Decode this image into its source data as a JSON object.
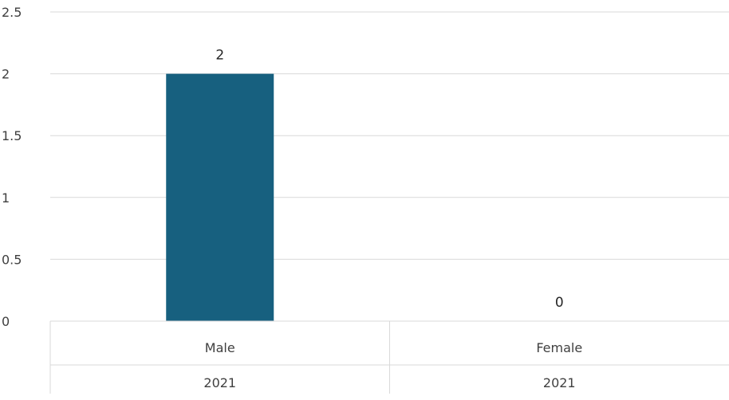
{
  "chart_data": {
    "type": "bar",
    "categories": [
      "Male",
      "Female"
    ],
    "category_groups": [
      "2021",
      "2021"
    ],
    "values": [
      2,
      0
    ],
    "data_labels": [
      "2",
      "0"
    ],
    "ylim": [
      0,
      2.5
    ],
    "y_ticks": [
      0,
      0.5,
      1,
      1.5,
      2,
      2.5
    ],
    "y_tick_labels": [
      "0",
      "0.5",
      "1",
      "1.5",
      "2",
      "2.5"
    ],
    "grid": true,
    "bar_color": "#17607f",
    "title": "",
    "xlabel": "",
    "ylabel": ""
  }
}
